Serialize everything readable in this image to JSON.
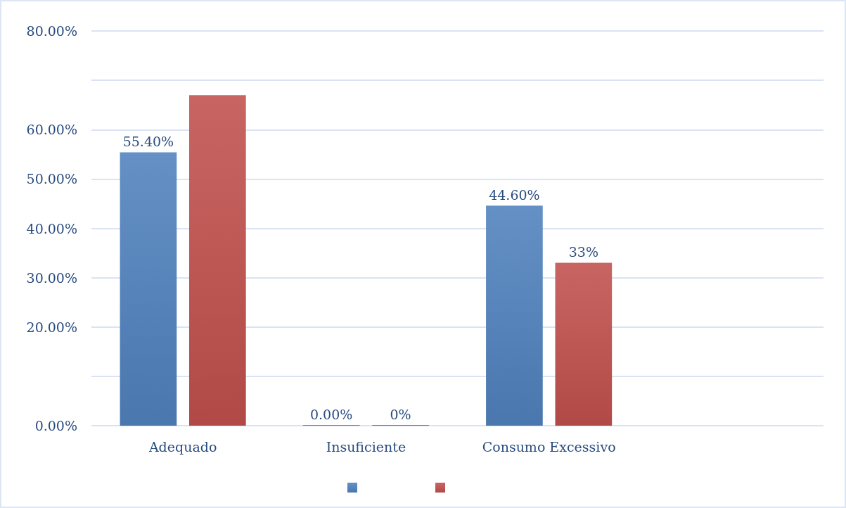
{
  "chart_data": {
    "type": "bar",
    "categories": [
      "Adequado",
      "Insuficiente",
      "Consumo Excessivo",
      null
    ],
    "series": [
      {
        "color": "#4f81bd",
        "values": [
          55.4,
          0,
          44.6,
          null
        ],
        "value_labels": [
          "55.40%",
          "0.00%",
          "44.60%",
          null
        ]
      },
      {
        "color": "#c0504d",
        "values": [
          67,
          0,
          33,
          null
        ],
        "value_labels": [
          null,
          "0%",
          "33%",
          null
        ]
      }
    ],
    "ylim": [
      0,
      80
    ],
    "yticks": [
      {
        "value": 0,
        "label": "0.00%"
      },
      {
        "value": 10,
        "label": null
      },
      {
        "value": 20,
        "label": "20.00%"
      },
      {
        "value": 30,
        "label": "30.00%"
      },
      {
        "value": 40,
        "label": "40.00%"
      },
      {
        "value": 50,
        "label": "50.00%"
      },
      {
        "value": 60,
        "label": "60.00%"
      },
      {
        "value": 70,
        "label": null
      },
      {
        "value": 80,
        "label": "80.00%"
      }
    ],
    "grid": "y"
  }
}
